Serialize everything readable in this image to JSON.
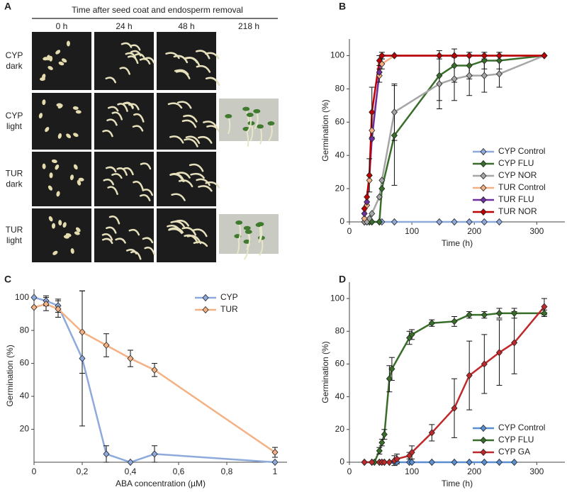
{
  "photo_panel": {
    "panel_label": "A",
    "title": "Time after seed coat and endosperm removal",
    "columns": [
      "0 h",
      "24 h",
      "48 h",
      "218 h"
    ],
    "rows": [
      [
        "CYP",
        "dark"
      ],
      [
        "CYP",
        "light"
      ],
      [
        "TUR",
        "dark"
      ],
      [
        "TUR",
        "light"
      ]
    ]
  },
  "chart_data": [
    {
      "type": "line",
      "panel_label": "B",
      "ylabel": "Germination (%)",
      "xlabel": "Time (h)",
      "x": [
        24,
        28,
        32,
        36,
        48,
        52,
        72,
        144,
        168,
        192,
        216,
        240,
        312
      ],
      "xlim": [
        0,
        345
      ],
      "xticks": [
        0,
        100,
        200,
        300
      ],
      "ylim": [
        0,
        110
      ],
      "yticks": [
        0,
        20,
        40,
        60,
        80,
        100
      ],
      "legend": "lower right",
      "series": [
        {
          "name": "CYP Control",
          "color": "#8eaadc",
          "values": [
            0,
            0,
            0,
            0,
            0,
            0,
            0,
            0,
            0,
            0,
            0,
            0,
            null
          ],
          "errors": [
            0,
            0,
            0,
            0,
            0,
            0,
            0,
            0,
            0,
            0,
            0,
            0,
            null
          ]
        },
        {
          "name": "CYP FLU",
          "color": "#386e2a",
          "values": [
            0,
            0,
            0,
            0,
            0,
            20,
            52,
            88,
            94,
            94,
            97,
            97,
            100
          ],
          "errors": [
            0,
            0,
            0,
            0,
            0,
            0,
            30,
            15,
            10,
            8,
            5,
            5,
            0
          ]
        },
        {
          "name": "CYP NOR",
          "color": "#a6a6a6",
          "values": [
            0,
            0,
            2,
            5,
            15,
            25,
            66,
            83,
            86,
            88,
            88,
            89,
            100
          ],
          "errors": [
            0,
            0,
            0,
            0,
            0,
            0,
            17,
            15,
            13,
            12,
            10,
            8,
            0
          ]
        },
        {
          "name": "TUR Control",
          "color": "#f4b183",
          "values": [
            2,
            10,
            25,
            55,
            88,
            95,
            100,
            100,
            100,
            100,
            100,
            100,
            100
          ],
          "errors": [
            0,
            0,
            0,
            0,
            4,
            3,
            0,
            0,
            0,
            0,
            0,
            0,
            0
          ]
        },
        {
          "name": "TUR FLU",
          "color": "#7030a0",
          "values": [
            5,
            12,
            28,
            50,
            90,
            100,
            100,
            100,
            100,
            100,
            100,
            100,
            100
          ],
          "errors": [
            0,
            0,
            0,
            0,
            0,
            0,
            0,
            0,
            0,
            0,
            0,
            0,
            0
          ]
        },
        {
          "name": "TUR NOR",
          "color": "#c00000",
          "values": [
            8,
            15,
            28,
            66,
            97,
            100,
            100,
            100,
            100,
            100,
            100,
            100,
            100
          ],
          "errors": [
            0,
            0,
            10,
            15,
            3,
            2,
            0,
            0,
            0,
            0,
            0,
            0,
            0
          ]
        }
      ]
    },
    {
      "type": "line",
      "panel_label": "C",
      "ylabel": "Germination (%)",
      "xlabel": "ABA concentration (µM)",
      "x": [
        0,
        0.05,
        0.1,
        0.2,
        0.3,
        0.4,
        0.5,
        1
      ],
      "xlim": [
        0,
        1.05
      ],
      "xticks": [
        0,
        {
          "value": 0.2,
          "label": "0,2"
        },
        {
          "value": 0.4,
          "label": "0,4"
        },
        {
          "value": 0.6,
          "label": "0,6"
        },
        {
          "value": 0.8,
          "label": "0,8"
        },
        1
      ],
      "ylim": [
        0,
        105
      ],
      "yticks": [
        20,
        40,
        60,
        80,
        100
      ],
      "legend": "upper right",
      "series": [
        {
          "name": "CYP",
          "color": "#8eaadc",
          "values": [
            100,
            98,
            95,
            63,
            5,
            0,
            5,
            0
          ],
          "errors": [
            0,
            3,
            4,
            41,
            5,
            0,
            5,
            0
          ]
        },
        {
          "name": "TUR",
          "color": "#f4b183",
          "values": [
            94,
            96,
            93,
            79,
            71,
            63,
            56,
            6
          ],
          "errors": [
            0,
            4,
            5,
            25,
            7,
            5,
            4,
            3
          ]
        }
      ]
    },
    {
      "type": "line",
      "panel_label": "D",
      "ylabel": "Germination (%)",
      "xlabel": "Time (h)",
      "xlim": [
        0,
        345
      ],
      "xticks": [
        0,
        100,
        200,
        300
      ],
      "ylim": [
        0,
        110
      ],
      "yticks": [
        0,
        20,
        40,
        60,
        80,
        100
      ],
      "legend": "lower right",
      "series": [
        {
          "name": "CYP Control",
          "color": "#5b8fd1",
          "x": [
            24,
            36,
            48,
            52,
            56,
            64,
            72,
            76,
            96,
            100,
            132,
            168,
            192,
            216,
            240,
            264
          ],
          "values": [
            0,
            0,
            0,
            0,
            0,
            0,
            0,
            0,
            0,
            0,
            0,
            0,
            0,
            0,
            0,
            0
          ],
          "errors": [
            0,
            0,
            0,
            0,
            0,
            0,
            0,
            0,
            0,
            0,
            0,
            0,
            0,
            0,
            0,
            0
          ]
        },
        {
          "name": "CYP FLU",
          "color": "#386e2a",
          "x": [
            40,
            48,
            52,
            56,
            64,
            68,
            96,
            100,
            132,
            168,
            192,
            216,
            240,
            264,
            312
          ],
          "values": [
            0,
            7,
            12,
            17,
            51,
            57,
            76,
            78,
            85,
            86,
            90,
            90,
            91,
            91,
            91
          ],
          "errors": [
            0,
            2,
            2,
            3,
            8,
            7,
            4,
            3,
            2,
            3,
            2,
            2,
            3,
            3,
            2
          ]
        },
        {
          "name": "CYP GA",
          "color": "#c0282a",
          "x": [
            24,
            36,
            48,
            52,
            56,
            64,
            72,
            76,
            96,
            100,
            132,
            168,
            192,
            216,
            240,
            264,
            312
          ],
          "values": [
            0,
            0,
            0,
            0,
            0,
            0,
            1,
            2,
            4,
            6,
            18,
            33,
            53,
            60,
            67,
            73,
            95
          ],
          "errors": [
            0,
            0,
            0,
            0,
            0,
            0,
            3,
            3,
            2,
            4,
            5,
            18,
            21,
            18,
            20,
            19,
            5
          ]
        }
      ]
    }
  ]
}
